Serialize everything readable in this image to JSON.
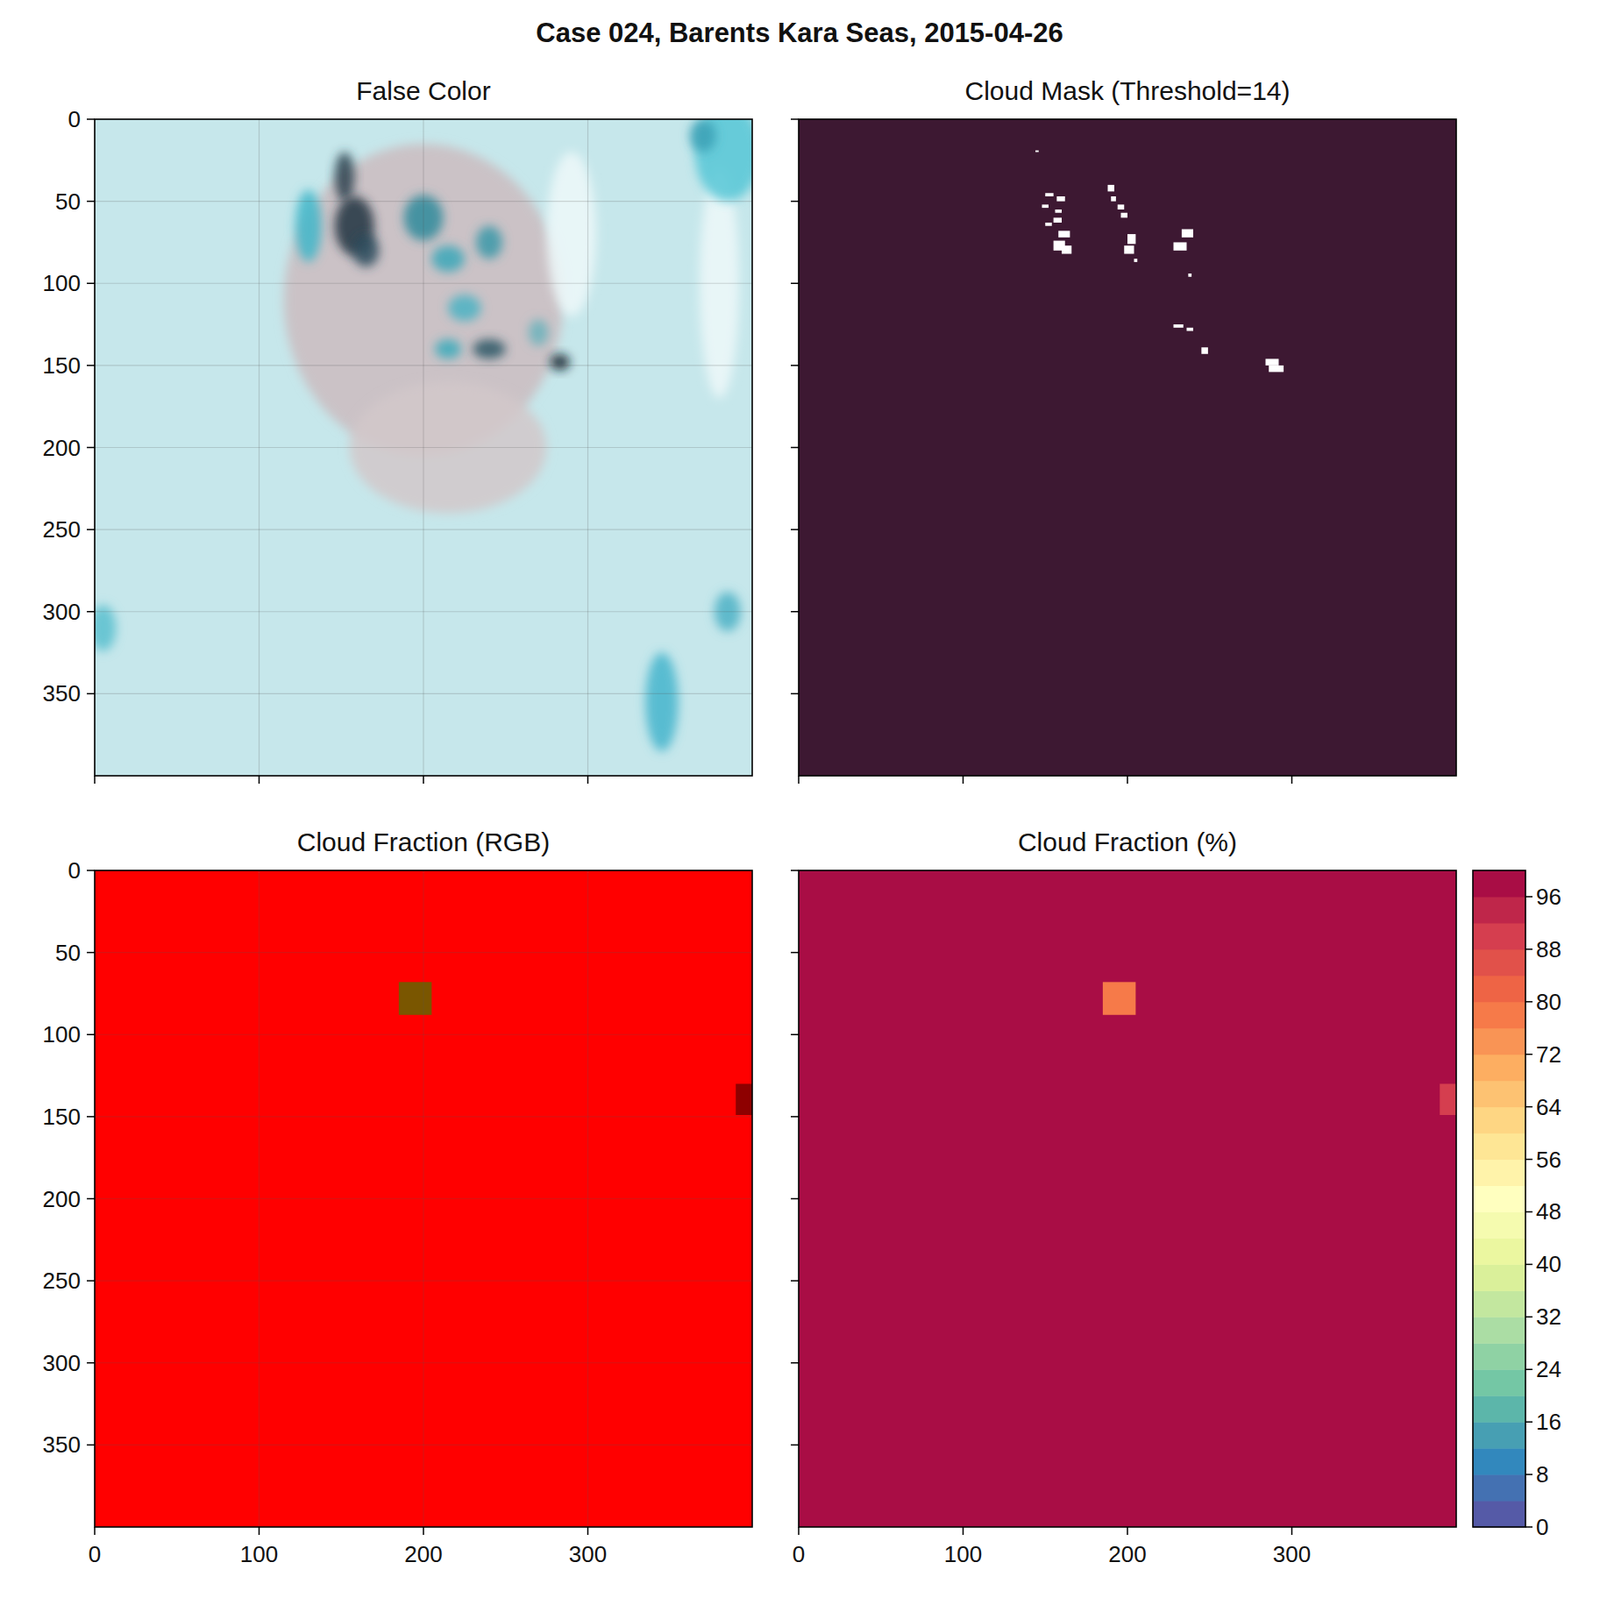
{
  "title": "Case 024, Barents Kara Seas, 2015-04-26",
  "chart_data": [
    {
      "type": "image",
      "title": "False Color",
      "xlim": [
        0,
        400
      ],
      "ylim": [
        400,
        0
      ],
      "xticks": [
        0,
        100,
        200,
        300
      ],
      "yticks": [
        0,
        50,
        100,
        150,
        200,
        250,
        300,
        350
      ],
      "grid": true,
      "tick_labels": "y",
      "color": "#c6e7eb",
      "features": [
        {
          "cx": 200,
          "cy": 110,
          "rx": 85,
          "ry": 95,
          "color": "#cbbcc0"
        },
        {
          "cx": 215,
          "cy": 200,
          "rx": 60,
          "ry": 40,
          "color": "#d2c8ca"
        },
        {
          "cx": 380,
          "cy": 100,
          "rx": 12,
          "ry": 70,
          "color": "#eef8f9"
        },
        {
          "cx": 290,
          "cy": 70,
          "rx": 15,
          "ry": 50,
          "color": "#eef8f9"
        },
        {
          "cx": 130,
          "cy": 65,
          "rx": 8,
          "ry": 22,
          "color": "#3fb6c9"
        },
        {
          "cx": 152,
          "cy": 35,
          "rx": 6,
          "ry": 15,
          "color": "#2a3f4d"
        },
        {
          "cx": 158,
          "cy": 65,
          "rx": 12,
          "ry": 18,
          "color": "#1f3440"
        },
        {
          "cx": 165,
          "cy": 80,
          "rx": 8,
          "ry": 10,
          "color": "#2c4a5c"
        },
        {
          "cx": 200,
          "cy": 60,
          "rx": 12,
          "ry": 14,
          "color": "#2f8a9b"
        },
        {
          "cx": 215,
          "cy": 85,
          "rx": 10,
          "ry": 8,
          "color": "#3aa7b8"
        },
        {
          "cx": 240,
          "cy": 75,
          "rx": 8,
          "ry": 10,
          "color": "#3a98a8"
        },
        {
          "cx": 225,
          "cy": 115,
          "rx": 10,
          "ry": 8,
          "color": "#4bb3c3"
        },
        {
          "cx": 215,
          "cy": 140,
          "rx": 8,
          "ry": 6,
          "color": "#3aaabb"
        },
        {
          "cx": 240,
          "cy": 140,
          "rx": 10,
          "ry": 6,
          "color": "#2b5664"
        },
        {
          "cx": 270,
          "cy": 130,
          "rx": 6,
          "ry": 8,
          "color": "#6ab3bc"
        },
        {
          "cx": 283,
          "cy": 148,
          "rx": 6,
          "ry": 5,
          "color": "#111e2a"
        },
        {
          "cx": 385,
          "cy": 20,
          "rx": 20,
          "ry": 30,
          "color": "#55c7d6"
        },
        {
          "cx": 370,
          "cy": 10,
          "rx": 8,
          "ry": 10,
          "color": "#3aa0b5"
        },
        {
          "cx": 345,
          "cy": 355,
          "rx": 10,
          "ry": 30,
          "color": "#44b5cc"
        },
        {
          "cx": 385,
          "cy": 300,
          "rx": 8,
          "ry": 12,
          "color": "#4cb2c6"
        },
        {
          "cx": 5,
          "cy": 310,
          "rx": 8,
          "ry": 14,
          "color": "#5bbfcf"
        }
      ]
    },
    {
      "type": "mask",
      "title": "Cloud Mask (Threshold=14)",
      "xlim": [
        0,
        400
      ],
      "ylim": [
        400,
        0
      ],
      "xticks": [
        0,
        100,
        200,
        300
      ],
      "yticks": [
        0,
        50,
        100,
        150,
        200,
        250,
        300,
        350
      ],
      "grid": false,
      "tick_labels": false,
      "background": 0,
      "cells": [
        {
          "x": [
            144,
            146
          ],
          "y": [
            19,
            20
          ],
          "value": 1
        },
        {
          "x": [
            150,
            155
          ],
          "y": [
            45,
            47
          ],
          "value": 1
        },
        {
          "x": [
            157,
            162
          ],
          "y": [
            47,
            50
          ],
          "value": 1
        },
        {
          "x": [
            148,
            152
          ],
          "y": [
            52,
            54
          ],
          "value": 1
        },
        {
          "x": [
            156,
            160
          ],
          "y": [
            55,
            57
          ],
          "value": 1
        },
        {
          "x": [
            155,
            160
          ],
          "y": [
            60,
            63
          ],
          "value": 1
        },
        {
          "x": [
            150,
            154
          ],
          "y": [
            63,
            65
          ],
          "value": 1
        },
        {
          "x": [
            158,
            165
          ],
          "y": [
            68,
            72
          ],
          "value": 1
        },
        {
          "x": [
            155,
            162
          ],
          "y": [
            74,
            80
          ],
          "value": 1
        },
        {
          "x": [
            160,
            166
          ],
          "y": [
            77,
            82
          ],
          "value": 1
        },
        {
          "x": [
            188,
            192
          ],
          "y": [
            40,
            44
          ],
          "value": 1
        },
        {
          "x": [
            190,
            193
          ],
          "y": [
            47,
            50
          ],
          "value": 1
        },
        {
          "x": [
            194,
            198
          ],
          "y": [
            52,
            55
          ],
          "value": 1
        },
        {
          "x": [
            196,
            200
          ],
          "y": [
            57,
            60
          ],
          "value": 1
        },
        {
          "x": [
            200,
            205
          ],
          "y": [
            70,
            76
          ],
          "value": 1
        },
        {
          "x": [
            198,
            204
          ],
          "y": [
            77,
            82
          ],
          "value": 1
        },
        {
          "x": [
            204,
            206
          ],
          "y": [
            85,
            87
          ],
          "value": 1
        },
        {
          "x": [
            233,
            240
          ],
          "y": [
            67,
            72
          ],
          "value": 1
        },
        {
          "x": [
            228,
            236
          ],
          "y": [
            75,
            80
          ],
          "value": 1
        },
        {
          "x": [
            237,
            239
          ],
          "y": [
            94,
            96
          ],
          "value": 1
        },
        {
          "x": [
            228,
            234
          ],
          "y": [
            125,
            127
          ],
          "value": 1
        },
        {
          "x": [
            236,
            240
          ],
          "y": [
            127,
            129
          ],
          "value": 1
        },
        {
          "x": [
            245,
            249
          ],
          "y": [
            139,
            143
          ],
          "value": 1
        },
        {
          "x": [
            284,
            292
          ],
          "y": [
            146,
            150
          ],
          "value": 1
        },
        {
          "x": [
            286,
            295
          ],
          "y": [
            150,
            154
          ],
          "value": 1
        }
      ]
    },
    {
      "type": "rgb",
      "title": "Cloud Fraction (RGB)",
      "xlim": [
        0,
        400
      ],
      "ylim": [
        400,
        0
      ],
      "xticks": [
        0,
        100,
        200,
        300
      ],
      "yticks": [
        0,
        50,
        100,
        150,
        200,
        250,
        300,
        350
      ],
      "grid": true,
      "cells": [
        {
          "x": [
            0,
            400
          ],
          "y": [
            0,
            400
          ],
          "value": 98,
          "color": "#ff0000"
        },
        {
          "x": [
            185,
            205
          ],
          "y": [
            68,
            88
          ],
          "value": 77,
          "color": "#7a5600"
        },
        {
          "x": [
            390,
            400
          ],
          "y": [
            130,
            149
          ],
          "value": 90,
          "color": "#8e0000"
        }
      ]
    },
    {
      "type": "heatmap",
      "title": "Cloud Fraction (%)",
      "xlim": [
        0,
        400
      ],
      "ylim": [
        400,
        0
      ],
      "xticks": [
        0,
        100,
        200,
        300
      ],
      "yticks": [
        0,
        50,
        100,
        150,
        200,
        250,
        300,
        350
      ],
      "grid": false,
      "tick_labels": "x",
      "cells": [
        {
          "x": [
            0,
            400
          ],
          "y": [
            0,
            400
          ],
          "value": 98
        },
        {
          "x": [
            185,
            205
          ],
          "y": [
            68,
            88
          ],
          "value": 77
        },
        {
          "x": [
            390,
            400
          ],
          "y": [
            130,
            149
          ],
          "value": 90
        }
      ],
      "colorbar": {
        "range": [
          0,
          100
        ],
        "ticks": [
          0,
          8,
          16,
          24,
          32,
          40,
          48,
          56,
          64,
          72,
          80,
          88,
          96
        ]
      }
    }
  ]
}
